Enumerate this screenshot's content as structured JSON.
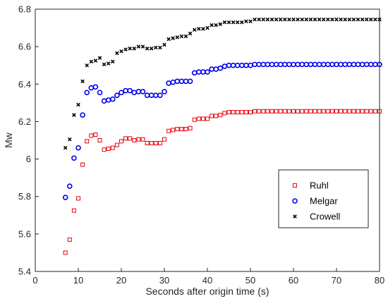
{
  "chart_data": {
    "type": "scatter",
    "xlabel": "Seconds after origin time (s)",
    "ylabel": "Mw",
    "xlim": [
      0,
      80
    ],
    "ylim": [
      5.4,
      6.8
    ],
    "xticks": [
      0,
      10,
      20,
      30,
      40,
      50,
      60,
      70,
      80
    ],
    "yticks": [
      5.4,
      5.6,
      5.8,
      6,
      6.2,
      6.4,
      6.6,
      6.8
    ],
    "xtick_labels": [
      "0",
      "10",
      "20",
      "30",
      "40",
      "50",
      "60",
      "70",
      "80"
    ],
    "ytick_labels": [
      "5.4",
      "5.6",
      "5.8",
      "6",
      "6.2",
      "6.4",
      "6.6",
      "6.8"
    ],
    "grid": false,
    "legend_position": "bottom-right",
    "series": [
      {
        "name": "Ruhl",
        "marker": "square",
        "color": "#e8000b",
        "points": [
          [
            7,
            5.5
          ],
          [
            8,
            5.57
          ],
          [
            9,
            5.725
          ],
          [
            10,
            5.79
          ],
          [
            11,
            5.97
          ],
          [
            12,
            6.095
          ],
          [
            13,
            6.125
          ],
          [
            14,
            6.13
          ],
          [
            15,
            6.1
          ],
          [
            16,
            6.05
          ],
          [
            17,
            6.055
          ],
          [
            18,
            6.06
          ],
          [
            19,
            6.075
          ],
          [
            20,
            6.095
          ],
          [
            21,
            6.11
          ],
          [
            22,
            6.11
          ],
          [
            23,
            6.1
          ],
          [
            24,
            6.105
          ],
          [
            25,
            6.105
          ],
          [
            26,
            6.085
          ],
          [
            27,
            6.085
          ],
          [
            28,
            6.085
          ],
          [
            29,
            6.085
          ],
          [
            30,
            6.105
          ],
          [
            31,
            6.15
          ],
          [
            32,
            6.155
          ],
          [
            33,
            6.16
          ],
          [
            34,
            6.16
          ],
          [
            35,
            6.16
          ],
          [
            36,
            6.165
          ],
          [
            37,
            6.21
          ],
          [
            38,
            6.215
          ],
          [
            39,
            6.215
          ],
          [
            40,
            6.215
          ],
          [
            41,
            6.23
          ],
          [
            42,
            6.23
          ],
          [
            43,
            6.235
          ],
          [
            44,
            6.245
          ],
          [
            45,
            6.25
          ],
          [
            46,
            6.25
          ],
          [
            47,
            6.25
          ],
          [
            48,
            6.25
          ],
          [
            49,
            6.25
          ],
          [
            50,
            6.25
          ],
          [
            51,
            6.255
          ],
          [
            52,
            6.255
          ],
          [
            53,
            6.255
          ],
          [
            54,
            6.255
          ],
          [
            55,
            6.255
          ],
          [
            56,
            6.255
          ],
          [
            57,
            6.255
          ],
          [
            58,
            6.255
          ],
          [
            59,
            6.255
          ],
          [
            60,
            6.255
          ],
          [
            61,
            6.255
          ],
          [
            62,
            6.255
          ],
          [
            63,
            6.255
          ],
          [
            64,
            6.255
          ],
          [
            65,
            6.255
          ],
          [
            66,
            6.255
          ],
          [
            67,
            6.255
          ],
          [
            68,
            6.255
          ],
          [
            69,
            6.255
          ],
          [
            70,
            6.255
          ],
          [
            71,
            6.255
          ],
          [
            72,
            6.255
          ],
          [
            73,
            6.255
          ],
          [
            74,
            6.255
          ],
          [
            75,
            6.255
          ],
          [
            76,
            6.255
          ],
          [
            77,
            6.255
          ],
          [
            78,
            6.255
          ],
          [
            79,
            6.255
          ],
          [
            80,
            6.255
          ]
        ]
      },
      {
        "name": "Melgar",
        "marker": "circle",
        "color": "#0000ee",
        "points": [
          [
            7,
            5.795
          ],
          [
            8,
            5.855
          ],
          [
            9,
            6.005
          ],
          [
            10,
            6.06
          ],
          [
            11,
            6.235
          ],
          [
            12,
            6.355
          ],
          [
            13,
            6.38
          ],
          [
            14,
            6.385
          ],
          [
            15,
            6.355
          ],
          [
            16,
            6.31
          ],
          [
            17,
            6.315
          ],
          [
            18,
            6.32
          ],
          [
            19,
            6.34
          ],
          [
            20,
            6.355
          ],
          [
            21,
            6.365
          ],
          [
            22,
            6.365
          ],
          [
            23,
            6.355
          ],
          [
            24,
            6.36
          ],
          [
            25,
            6.36
          ],
          [
            26,
            6.34
          ],
          [
            27,
            6.34
          ],
          [
            28,
            6.34
          ],
          [
            29,
            6.34
          ],
          [
            30,
            6.36
          ],
          [
            31,
            6.405
          ],
          [
            32,
            6.41
          ],
          [
            33,
            6.415
          ],
          [
            34,
            6.415
          ],
          [
            35,
            6.415
          ],
          [
            36,
            6.415
          ],
          [
            37,
            6.46
          ],
          [
            38,
            6.465
          ],
          [
            39,
            6.465
          ],
          [
            40,
            6.465
          ],
          [
            41,
            6.48
          ],
          [
            42,
            6.48
          ],
          [
            43,
            6.485
          ],
          [
            44,
            6.495
          ],
          [
            45,
            6.5
          ],
          [
            46,
            6.5
          ],
          [
            47,
            6.5
          ],
          [
            48,
            6.5
          ],
          [
            49,
            6.5
          ],
          [
            50,
            6.5
          ],
          [
            51,
            6.505
          ],
          [
            52,
            6.505
          ],
          [
            53,
            6.505
          ],
          [
            54,
            6.505
          ],
          [
            55,
            6.505
          ],
          [
            56,
            6.505
          ],
          [
            57,
            6.505
          ],
          [
            58,
            6.505
          ],
          [
            59,
            6.505
          ],
          [
            60,
            6.505
          ],
          [
            61,
            6.505
          ],
          [
            62,
            6.505
          ],
          [
            63,
            6.505
          ],
          [
            64,
            6.505
          ],
          [
            65,
            6.505
          ],
          [
            66,
            6.505
          ],
          [
            67,
            6.505
          ],
          [
            68,
            6.505
          ],
          [
            69,
            6.505
          ],
          [
            70,
            6.505
          ],
          [
            71,
            6.505
          ],
          [
            72,
            6.505
          ],
          [
            73,
            6.505
          ],
          [
            74,
            6.505
          ],
          [
            75,
            6.505
          ],
          [
            76,
            6.505
          ],
          [
            77,
            6.505
          ],
          [
            78,
            6.505
          ],
          [
            79,
            6.505
          ],
          [
            80,
            6.505
          ]
        ]
      },
      {
        "name": "Crowell",
        "marker": "x",
        "color": "#000000",
        "points": [
          [
            7,
            6.06
          ],
          [
            8,
            6.105
          ],
          [
            9,
            6.235
          ],
          [
            10,
            6.29
          ],
          [
            11,
            6.415
          ],
          [
            12,
            6.5
          ],
          [
            13,
            6.52
          ],
          [
            14,
            6.525
          ],
          [
            15,
            6.54
          ],
          [
            16,
            6.505
          ],
          [
            17,
            6.51
          ],
          [
            18,
            6.52
          ],
          [
            19,
            6.565
          ],
          [
            20,
            6.575
          ],
          [
            21,
            6.585
          ],
          [
            22,
            6.59
          ],
          [
            23,
            6.59
          ],
          [
            24,
            6.6
          ],
          [
            25,
            6.6
          ],
          [
            26,
            6.59
          ],
          [
            27,
            6.59
          ],
          [
            28,
            6.595
          ],
          [
            29,
            6.595
          ],
          [
            30,
            6.61
          ],
          [
            31,
            6.64
          ],
          [
            32,
            6.645
          ],
          [
            33,
            6.65
          ],
          [
            34,
            6.655
          ],
          [
            35,
            6.655
          ],
          [
            36,
            6.67
          ],
          [
            37,
            6.69
          ],
          [
            38,
            6.695
          ],
          [
            39,
            6.695
          ],
          [
            40,
            6.7
          ],
          [
            41,
            6.715
          ],
          [
            42,
            6.715
          ],
          [
            43,
            6.72
          ],
          [
            44,
            6.73
          ],
          [
            45,
            6.73
          ],
          [
            46,
            6.73
          ],
          [
            47,
            6.73
          ],
          [
            48,
            6.73
          ],
          [
            49,
            6.735
          ],
          [
            50,
            6.735
          ],
          [
            51,
            6.745
          ],
          [
            52,
            6.745
          ],
          [
            53,
            6.745
          ],
          [
            54,
            6.745
          ],
          [
            55,
            6.745
          ],
          [
            56,
            6.745
          ],
          [
            57,
            6.745
          ],
          [
            58,
            6.745
          ],
          [
            59,
            6.745
          ],
          [
            60,
            6.745
          ],
          [
            61,
            6.745
          ],
          [
            62,
            6.745
          ],
          [
            63,
            6.745
          ],
          [
            64,
            6.745
          ],
          [
            65,
            6.745
          ],
          [
            66,
            6.745
          ],
          [
            67,
            6.745
          ],
          [
            68,
            6.745
          ],
          [
            69,
            6.745
          ],
          [
            70,
            6.745
          ],
          [
            71,
            6.745
          ],
          [
            72,
            6.745
          ],
          [
            73,
            6.745
          ],
          [
            74,
            6.745
          ],
          [
            75,
            6.745
          ],
          [
            76,
            6.745
          ],
          [
            77,
            6.745
          ],
          [
            78,
            6.745
          ],
          [
            79,
            6.745
          ],
          [
            80,
            6.745
          ]
        ]
      }
    ]
  }
}
